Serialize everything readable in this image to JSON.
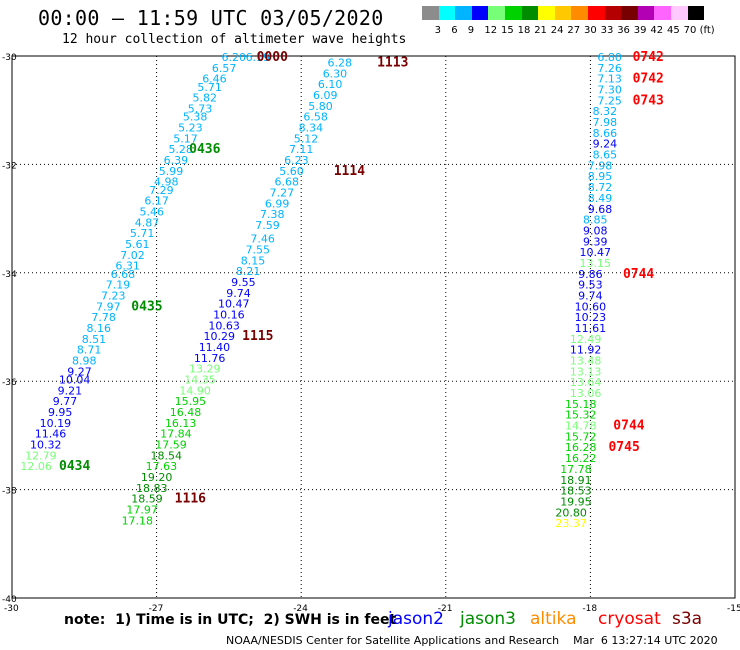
{
  "header": {
    "title": "00:00 — 11:59 UTC 03/05/2020",
    "subtitle": "12 hour collection of altimeter wave heights"
  },
  "scale": {
    "unit": "(ft)",
    "colors": [
      "#8c8c8c",
      "#00ffff",
      "#00b4ff",
      "#0000ff",
      "#78ff78",
      "#00d200",
      "#008c00",
      "#ffff00",
      "#ffc800",
      "#ff8c00",
      "#ff0000",
      "#b40000",
      "#780000",
      "#b400b4",
      "#ff64ff",
      "#ffc8ff",
      "#000000"
    ],
    "labels": [
      "3",
      "6",
      "9",
      "12",
      "15",
      "18",
      "21",
      "24",
      "27",
      "30",
      "33",
      "36",
      "39",
      "42",
      "45",
      "70"
    ]
  },
  "axes": {
    "lat_labels": [
      "-30",
      "-32",
      "-34",
      "-36",
      "-38",
      "-40"
    ],
    "lat_values": [
      -30,
      -32,
      -34,
      -36,
      -38,
      -40
    ],
    "lon_labels": [
      "-30",
      "-27",
      "-24",
      "-21",
      "-18",
      "-15"
    ],
    "lon_values": [
      -30,
      -27,
      -24,
      -21,
      -18,
      -15
    ]
  },
  "tracks": [
    {
      "name": "left_pass",
      "points": [
        {
          "lon": -25.4,
          "lat": -30.0,
          "v": "6.20",
          "c": "#00b4ff"
        },
        {
          "lon": -25.6,
          "lat": -30.2,
          "v": "6.57",
          "c": "#00b4ff"
        },
        {
          "lon": -25.8,
          "lat": -30.4,
          "v": "6.46",
          "c": "#00b4ff"
        },
        {
          "lon": -25.9,
          "lat": -30.55,
          "v": "5.71",
          "c": "#00b4ff"
        },
        {
          "lon": -26.0,
          "lat": -30.75,
          "v": "5.82",
          "c": "#00b4ff"
        },
        {
          "lon": -26.1,
          "lat": -30.95,
          "v": "5.73",
          "c": "#00b4ff"
        },
        {
          "lon": -26.2,
          "lat": -31.1,
          "v": "5.38",
          "c": "#00b4ff"
        },
        {
          "lon": -26.3,
          "lat": -31.3,
          "v": "5.23",
          "c": "#00b4ff"
        },
        {
          "lon": -26.4,
          "lat": -31.5,
          "v": "5.17",
          "c": "#00b4ff"
        },
        {
          "lon": -26.5,
          "lat": -31.7,
          "v": "5.28",
          "c": "#00b4ff"
        },
        {
          "lon": -26.6,
          "lat": -31.9,
          "v": "6.39",
          "c": "#00b4ff"
        },
        {
          "lon": -26.7,
          "lat": -32.1,
          "v": "5.99",
          "c": "#00b4ff"
        },
        {
          "lon": -26.8,
          "lat": -32.3,
          "v": "4.98",
          "c": "#00b4ff"
        },
        {
          "lon": -26.9,
          "lat": -32.45,
          "v": "7.29",
          "c": "#00b4ff"
        },
        {
          "lon": -27.0,
          "lat": -32.65,
          "v": "6.17",
          "c": "#00b4ff"
        },
        {
          "lon": -27.1,
          "lat": -32.85,
          "v": "5.46",
          "c": "#00b4ff"
        },
        {
          "lon": -27.2,
          "lat": -33.05,
          "v": "4.87",
          "c": "#00b4ff"
        },
        {
          "lon": -27.3,
          "lat": -33.25,
          "v": "5.71",
          "c": "#00b4ff"
        },
        {
          "lon": -27.4,
          "lat": -33.45,
          "v": "5.61",
          "c": "#00b4ff"
        },
        {
          "lon": -27.5,
          "lat": -33.65,
          "v": "7.02",
          "c": "#00b4ff"
        },
        {
          "lon": -27.6,
          "lat": -33.85,
          "v": "6.31",
          "c": "#00b4ff"
        },
        {
          "lon": -27.7,
          "lat": -34.0,
          "v": "6.68",
          "c": "#00b4ff"
        },
        {
          "lon": -27.8,
          "lat": -34.2,
          "v": "7.19",
          "c": "#00b4ff"
        },
        {
          "lon": -27.9,
          "lat": -34.4,
          "v": "7.23",
          "c": "#00b4ff"
        },
        {
          "lon": -28.0,
          "lat": -34.6,
          "v": "7.97",
          "c": "#00b4ff"
        },
        {
          "lon": -28.1,
          "lat": -34.8,
          "v": "7.78",
          "c": "#00b4ff"
        },
        {
          "lon": -28.2,
          "lat": -35.0,
          "v": "8.16",
          "c": "#00b4ff"
        },
        {
          "lon": -28.3,
          "lat": -35.2,
          "v": "8.51",
          "c": "#00b4ff"
        },
        {
          "lon": -28.4,
          "lat": -35.4,
          "v": "8.71",
          "c": "#00b4ff"
        },
        {
          "lon": -28.5,
          "lat": -35.6,
          "v": "8.98",
          "c": "#00b4ff"
        },
        {
          "lon": -28.6,
          "lat": -35.8,
          "v": "9.27",
          "c": "#0000ff"
        },
        {
          "lon": -28.7,
          "lat": -35.95,
          "v": "10.04",
          "c": "#0000ff"
        },
        {
          "lon": -28.8,
          "lat": -36.15,
          "v": "9.21",
          "c": "#0000ff"
        },
        {
          "lon": -28.9,
          "lat": -36.35,
          "v": "9.77",
          "c": "#0000ff"
        },
        {
          "lon": -29.0,
          "lat": -36.55,
          "v": "9.95",
          "c": "#0000ff"
        },
        {
          "lon": -29.1,
          "lat": -36.75,
          "v": "10.19",
          "c": "#0000ff"
        },
        {
          "lon": -29.2,
          "lat": -36.95,
          "v": "11.46",
          "c": "#0000ff"
        },
        {
          "lon": -29.3,
          "lat": -37.15,
          "v": "10.32",
          "c": "#0000ff"
        },
        {
          "lon": -29.4,
          "lat": -37.35,
          "v": "12.79",
          "c": "#78ff78"
        },
        {
          "lon": -29.5,
          "lat": -37.55,
          "v": "12.06",
          "c": "#78ff78"
        }
      ]
    },
    {
      "name": "mid_top",
      "points": [
        {
          "lon": -24.9,
          "lat": -30.0,
          "v": "6.19",
          "c": "#00b4ff"
        }
      ]
    },
    {
      "name": "middle_pass",
      "points": [
        {
          "lon": -23.2,
          "lat": -30.1,
          "v": "6.28",
          "c": "#00b4ff"
        },
        {
          "lon": -23.3,
          "lat": -30.3,
          "v": "6.30",
          "c": "#00b4ff"
        },
        {
          "lon": -23.4,
          "lat": -30.5,
          "v": "6.10",
          "c": "#00b4ff"
        },
        {
          "lon": -23.5,
          "lat": -30.7,
          "v": "6.09",
          "c": "#00b4ff"
        },
        {
          "lon": -23.6,
          "lat": -30.9,
          "v": "5.80",
          "c": "#00b4ff"
        },
        {
          "lon": -23.7,
          "lat": -31.1,
          "v": "6.58",
          "c": "#00b4ff"
        },
        {
          "lon": -23.8,
          "lat": -31.3,
          "v": "8.34",
          "c": "#00b4ff"
        },
        {
          "lon": -23.9,
          "lat": -31.5,
          "v": "5.12",
          "c": "#00b4ff"
        },
        {
          "lon": -24.0,
          "lat": -31.7,
          "v": "7.11",
          "c": "#00b4ff"
        },
        {
          "lon": -24.1,
          "lat": -31.9,
          "v": "6.23",
          "c": "#00b4ff"
        },
        {
          "lon": -24.2,
          "lat": -32.1,
          "v": "5.60",
          "c": "#00b4ff"
        },
        {
          "lon": -24.3,
          "lat": -32.3,
          "v": "6.68",
          "c": "#00b4ff"
        },
        {
          "lon": -24.4,
          "lat": -32.5,
          "v": "7.27",
          "c": "#00b4ff"
        },
        {
          "lon": -24.5,
          "lat": -32.7,
          "v": "6.99",
          "c": "#00b4ff"
        },
        {
          "lon": -24.6,
          "lat": -32.9,
          "v": "7.38",
          "c": "#00b4ff"
        },
        {
          "lon": -24.7,
          "lat": -33.1,
          "v": "7.59",
          "c": "#00b4ff"
        },
        {
          "lon": -24.8,
          "lat": -33.35,
          "v": "7.46",
          "c": "#00b4ff"
        },
        {
          "lon": -24.9,
          "lat": -33.55,
          "v": "7.55",
          "c": "#00b4ff"
        },
        {
          "lon": -25.0,
          "lat": -33.75,
          "v": "8.15",
          "c": "#00b4ff"
        },
        {
          "lon": -25.1,
          "lat": -33.95,
          "v": "8.21",
          "c": "#00b4ff"
        },
        {
          "lon": -25.2,
          "lat": -34.15,
          "v": "9.55",
          "c": "#0000ff"
        },
        {
          "lon": -25.3,
          "lat": -34.35,
          "v": "9.74",
          "c": "#0000ff"
        },
        {
          "lon": -25.4,
          "lat": -34.55,
          "v": "10.47",
          "c": "#0000ff"
        },
        {
          "lon": -25.5,
          "lat": -34.75,
          "v": "10.16",
          "c": "#0000ff"
        },
        {
          "lon": -25.6,
          "lat": -34.95,
          "v": "10.63",
          "c": "#0000ff"
        },
        {
          "lon": -25.7,
          "lat": -35.15,
          "v": "10.29",
          "c": "#0000ff"
        },
        {
          "lon": -25.8,
          "lat": -35.35,
          "v": "11.40",
          "c": "#0000ff"
        },
        {
          "lon": -25.9,
          "lat": -35.55,
          "v": "11.76",
          "c": "#0000ff"
        },
        {
          "lon": -26.0,
          "lat": -35.75,
          "v": "13.29",
          "c": "#78ff78"
        },
        {
          "lon": -26.1,
          "lat": -35.95,
          "v": "14.35",
          "c": "#78ff78"
        },
        {
          "lon": -26.2,
          "lat": -36.15,
          "v": "14.90",
          "c": "#78ff78"
        },
        {
          "lon": -26.3,
          "lat": -36.35,
          "v": "15.95",
          "c": "#00d200"
        },
        {
          "lon": -26.4,
          "lat": -36.55,
          "v": "16.48",
          "c": "#00d200"
        },
        {
          "lon": -26.5,
          "lat": -36.75,
          "v": "16.13",
          "c": "#00d200"
        },
        {
          "lon": -26.6,
          "lat": -36.95,
          "v": "17.84",
          "c": "#00d200"
        },
        {
          "lon": -26.7,
          "lat": -37.15,
          "v": "17.59",
          "c": "#00d200"
        },
        {
          "lon": -26.8,
          "lat": -37.35,
          "v": "18.54",
          "c": "#008c00"
        },
        {
          "lon": -26.9,
          "lat": -37.55,
          "v": "17.63",
          "c": "#00d200"
        },
        {
          "lon": -27.0,
          "lat": -37.75,
          "v": "19.20",
          "c": "#008c00"
        },
        {
          "lon": -27.1,
          "lat": -37.95,
          "v": "18.83",
          "c": "#008c00"
        },
        {
          "lon": -27.2,
          "lat": -38.15,
          "v": "18.59",
          "c": "#008c00"
        },
        {
          "lon": -27.3,
          "lat": -38.35,
          "v": "17.97",
          "c": "#00d200"
        },
        {
          "lon": -27.4,
          "lat": -38.55,
          "v": "17.18",
          "c": "#00d200"
        }
      ]
    },
    {
      "name": "right_pass",
      "points": [
        {
          "lon": -17.6,
          "lat": -30.0,
          "v": "6.80",
          "c": "#00b4ff"
        },
        {
          "lon": -17.6,
          "lat": -30.2,
          "v": "7.26",
          "c": "#00b4ff"
        },
        {
          "lon": -17.6,
          "lat": -30.4,
          "v": "7.13",
          "c": "#00b4ff"
        },
        {
          "lon": -17.6,
          "lat": -30.6,
          "v": "7.30",
          "c": "#00b4ff"
        },
        {
          "lon": -17.6,
          "lat": -30.8,
          "v": "7.25",
          "c": "#00b4ff"
        },
        {
          "lon": -17.7,
          "lat": -31.0,
          "v": "8.32",
          "c": "#00b4ff"
        },
        {
          "lon": -17.7,
          "lat": -31.2,
          "v": "7.98",
          "c": "#00b4ff"
        },
        {
          "lon": -17.7,
          "lat": -31.4,
          "v": "8.66",
          "c": "#00b4ff"
        },
        {
          "lon": -17.7,
          "lat": -31.6,
          "v": "9.24",
          "c": "#0000ff"
        },
        {
          "lon": -17.7,
          "lat": -31.8,
          "v": "8.65",
          "c": "#00b4ff"
        },
        {
          "lon": -17.8,
          "lat": -32.0,
          "v": "7.98",
          "c": "#00b4ff"
        },
        {
          "lon": -17.8,
          "lat": -32.2,
          "v": "8.95",
          "c": "#00b4ff"
        },
        {
          "lon": -17.8,
          "lat": -32.4,
          "v": "8.72",
          "c": "#00b4ff"
        },
        {
          "lon": -17.8,
          "lat": -32.6,
          "v": "8.49",
          "c": "#00b4ff"
        },
        {
          "lon": -17.8,
          "lat": -32.8,
          "v": "9.68",
          "c": "#0000ff"
        },
        {
          "lon": -17.9,
          "lat": -33.0,
          "v": "8.85",
          "c": "#00b4ff"
        },
        {
          "lon": -17.9,
          "lat": -33.2,
          "v": "9.08",
          "c": "#0000ff"
        },
        {
          "lon": -17.9,
          "lat": -33.4,
          "v": "9.39",
          "c": "#0000ff"
        },
        {
          "lon": -17.9,
          "lat": -33.6,
          "v": "10.47",
          "c": "#0000ff"
        },
        {
          "lon": -17.9,
          "lat": -33.8,
          "v": "13.15",
          "c": "#78ff78"
        },
        {
          "lon": -18.0,
          "lat": -34.0,
          "v": "9.86",
          "c": "#0000ff"
        },
        {
          "lon": -18.0,
          "lat": -34.2,
          "v": "9.53",
          "c": "#0000ff"
        },
        {
          "lon": -18.0,
          "lat": -34.4,
          "v": "9.74",
          "c": "#0000ff"
        },
        {
          "lon": -18.0,
          "lat": -34.6,
          "v": "10.60",
          "c": "#0000ff"
        },
        {
          "lon": -18.0,
          "lat": -34.8,
          "v": "10.23",
          "c": "#0000ff"
        },
        {
          "lon": -18.0,
          "lat": -35.0,
          "v": "11.61",
          "c": "#0000ff"
        },
        {
          "lon": -18.1,
          "lat": -35.2,
          "v": "12.49",
          "c": "#78ff78"
        },
        {
          "lon": -18.1,
          "lat": -35.4,
          "v": "11.92",
          "c": "#0000ff"
        },
        {
          "lon": -18.1,
          "lat": -35.6,
          "v": "13.48",
          "c": "#78ff78"
        },
        {
          "lon": -18.1,
          "lat": -35.8,
          "v": "13.13",
          "c": "#78ff78"
        },
        {
          "lon": -18.1,
          "lat": -36.0,
          "v": "13.64",
          "c": "#78ff78"
        },
        {
          "lon": -18.1,
          "lat": -36.2,
          "v": "13.06",
          "c": "#78ff78"
        },
        {
          "lon": -18.2,
          "lat": -36.4,
          "v": "15.18",
          "c": "#00d200"
        },
        {
          "lon": -18.2,
          "lat": -36.6,
          "v": "15.32",
          "c": "#00d200"
        },
        {
          "lon": -18.2,
          "lat": -36.8,
          "v": "14.78",
          "c": "#78ff78"
        },
        {
          "lon": -18.2,
          "lat": -37.0,
          "v": "15.72",
          "c": "#00d200"
        },
        {
          "lon": -18.2,
          "lat": -37.2,
          "v": "16.28",
          "c": "#00d200"
        },
        {
          "lon": -18.2,
          "lat": -37.4,
          "v": "16.22",
          "c": "#00d200"
        },
        {
          "lon": -18.3,
          "lat": -37.6,
          "v": "17.78",
          "c": "#00d200"
        },
        {
          "lon": -18.3,
          "lat": -37.8,
          "v": "18.91",
          "c": "#008c00"
        },
        {
          "lon": -18.3,
          "lat": -38.0,
          "v": "18.53",
          "c": "#008c00"
        },
        {
          "lon": -18.3,
          "lat": -38.2,
          "v": "19.95",
          "c": "#008c00"
        },
        {
          "lon": -18.4,
          "lat": -38.4,
          "v": "20.80",
          "c": "#008c00"
        },
        {
          "lon": -18.4,
          "lat": -38.6,
          "v": "23.37",
          "c": "#ffff00"
        }
      ]
    }
  ],
  "time_labels": [
    {
      "lon": -24.6,
      "lat": -30.0,
      "t": "0000",
      "c": "#780000"
    },
    {
      "lon": -22.1,
      "lat": -30.1,
      "t": "1113",
      "c": "#780000"
    },
    {
      "lon": -26.0,
      "lat": -31.7,
      "t": "0436",
      "c": "#008c00"
    },
    {
      "lon": -23.0,
      "lat": -32.1,
      "t": "1114",
      "c": "#780000"
    },
    {
      "lon": -27.2,
      "lat": -34.6,
      "t": "0435",
      "c": "#008c00"
    },
    {
      "lon": -24.9,
      "lat": -35.15,
      "t": "1115",
      "c": "#780000"
    },
    {
      "lon": -28.7,
      "lat": -37.55,
      "t": "0434",
      "c": "#008c00"
    },
    {
      "lon": -26.3,
      "lat": -38.15,
      "t": "1116",
      "c": "#780000"
    },
    {
      "lon": -16.8,
      "lat": -30.0,
      "t": "0742",
      "c": "#ff0000"
    },
    {
      "lon": -16.8,
      "lat": -30.4,
      "t": "0742",
      "c": "#ff0000"
    },
    {
      "lon": -16.8,
      "lat": -30.8,
      "t": "0743",
      "c": "#ff0000"
    },
    {
      "lon": -17.0,
      "lat": -34.0,
      "t": "0744",
      "c": "#ff0000"
    },
    {
      "lon": -17.2,
      "lat": -36.8,
      "t": "0744",
      "c": "#ff0000"
    },
    {
      "lon": -17.3,
      "lat": -37.2,
      "t": "0745",
      "c": "#ff0000"
    }
  ],
  "footer": {
    "note": "note:  1) Time is in UTC;  2) SWH is in feet",
    "satellites": [
      {
        "name": "jason2",
        "color": "#0000ff"
      },
      {
        "name": "jason3",
        "color": "#008c00"
      },
      {
        "name": "altika",
        "color": "#ff8c00"
      },
      {
        "name": "cryosat",
        "color": "#ff0000"
      },
      {
        "name": "s3a",
        "color": "#780000"
      }
    ],
    "credit": "NOAA/NESDIS Center for Satellite Applications and Research    Mar  6 13:27:14 UTC 2020"
  }
}
